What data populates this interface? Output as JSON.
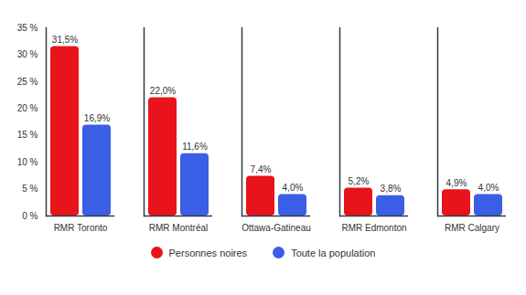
{
  "chart_data": {
    "type": "bar",
    "categories": [
      "RMR Toronto",
      "RMR Montréal",
      "Ottawa-Gatineau",
      "RMR Edmonton",
      "RMR Calgary"
    ],
    "series": [
      {
        "name": "Personnes noires",
        "color": "#e8131b",
        "values": [
          31.5,
          22.0,
          7.4,
          5.2,
          4.9
        ],
        "value_labels": [
          "31,5%",
          "22,0%",
          "7,4%",
          "5,2%",
          "4,9%"
        ]
      },
      {
        "name": "Toute la population",
        "color": "#3b5ee6",
        "values": [
          16.9,
          11.6,
          4.0,
          3.8,
          4.0
        ],
        "value_labels": [
          "16,9%",
          "11,6%",
          "4,0%",
          "3,8%",
          "4,0%"
        ]
      }
    ],
    "ylim": [
      0,
      35
    ],
    "yticks": [
      {
        "value": 0,
        "label": "0 %"
      },
      {
        "value": 5,
        "label": "5 %"
      },
      {
        "value": 10,
        "label": "10 %"
      },
      {
        "value": 15,
        "label": "15 %"
      },
      {
        "value": 20,
        "label": "20 %"
      },
      {
        "value": 25,
        "label": "25 %"
      },
      {
        "value": 30,
        "label": "30 %"
      },
      {
        "value": 35,
        "label": "35 %"
      }
    ],
    "grid": false,
    "data_labels": true,
    "legend": "bottom"
  }
}
